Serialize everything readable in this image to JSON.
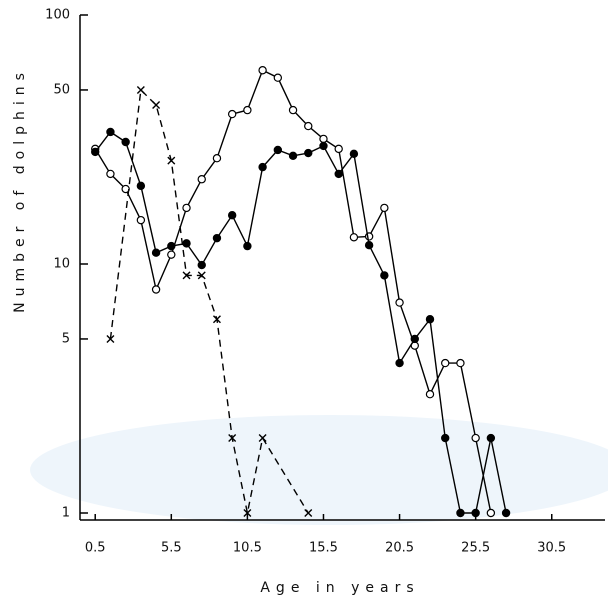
{
  "chart_data": {
    "type": "line",
    "xlabel": "Age in years",
    "ylabel": "Number of dolphins",
    "log_y": true,
    "xlim": [
      -0.5,
      34
    ],
    "ylim": [
      1,
      100
    ],
    "xticks": [
      0.5,
      5.5,
      10.5,
      15.5,
      20.5,
      25.5,
      30.5
    ],
    "yticks": [
      1,
      5,
      10,
      50,
      100
    ],
    "series": [
      {
        "color": "#000000",
        "marker": "open-circle",
        "dashed": false,
        "x": [
          0.5,
          1.5,
          2.5,
          3.5,
          4.5,
          5.5,
          6.5,
          7.5,
          8.5,
          9.5,
          10.5,
          11.5,
          12.5,
          13.5,
          14.5,
          15.5,
          16.5,
          17.5,
          18.5,
          19.5,
          20.5,
          21.5,
          22.5,
          23.5,
          24.5,
          25.5,
          26.5
        ],
        "values": [
          29,
          23,
          20,
          15,
          7.9,
          10.9,
          16.8,
          21.9,
          26.6,
          40,
          41.5,
          60,
          56,
          41.5,
          35.8,
          31.8,
          29,
          12.8,
          12.9,
          16.8,
          7,
          4.7,
          3,
          4,
          4,
          2,
          1
        ]
      },
      {
        "color": "#000000",
        "marker": "filled-circle",
        "dashed": false,
        "x": [
          0.5,
          1.5,
          2.5,
          3.5,
          4.5,
          5.5,
          6.5,
          7.5,
          8.5,
          9.5,
          10.5,
          11.5,
          12.5,
          13.5,
          14.5,
          15.5,
          16.5,
          17.5,
          18.5,
          19.5,
          20.5,
          21.5,
          22.5,
          23.5,
          24.5,
          25.5,
          26.5,
          27.5
        ],
        "values": [
          28.2,
          33.9,
          30.9,
          20.6,
          11.1,
          11.8,
          12.1,
          9.9,
          12.7,
          15.7,
          11.8,
          24.5,
          28.7,
          27.2,
          27.9,
          29.8,
          23,
          27.7,
          11.9,
          9,
          4,
          5,
          6,
          2,
          1,
          1,
          2,
          1
        ]
      },
      {
        "color": "#000000",
        "marker": "cross",
        "dashed": true,
        "x": [
          1.5,
          3.5,
          4.5,
          5.5,
          6.5,
          7.5,
          8.5,
          9.5,
          10.5,
          11.5,
          14.5
        ],
        "values": [
          5,
          50,
          43.5,
          26,
          9,
          9,
          6,
          2,
          1,
          2,
          1
        ]
      }
    ]
  }
}
